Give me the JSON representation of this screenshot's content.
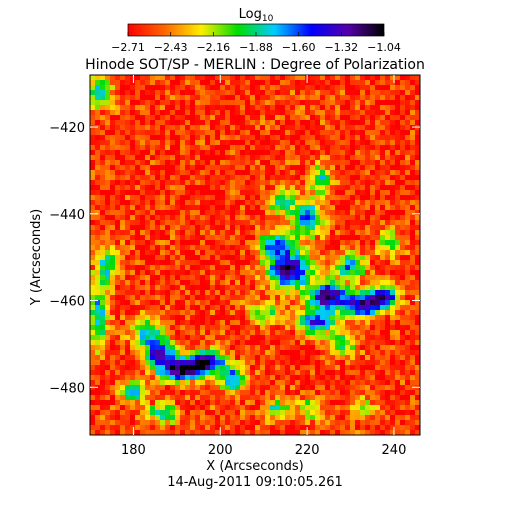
{
  "chart_data": {
    "type": "heatmap",
    "title": "Hinode SOT/SP - MERLIN : Degree of Polarization",
    "xlabel": "X (Arcseconds)",
    "ylabel": "Y (Arcseconds)",
    "xlim": [
      170,
      246
    ],
    "ylim": [
      -491,
      -408
    ],
    "x_ticks": [
      180,
      200,
      220,
      240
    ],
    "y_ticks": [
      -480,
      -460,
      -440,
      -420
    ],
    "x_tick_labels": [
      "180",
      "200",
      "220",
      "240"
    ],
    "y_tick_labels": [
      "−480",
      "−460",
      "−440",
      "−420"
    ],
    "timestamp": "14-Aug-2011 09:10:05.261",
    "colorbar": {
      "label": "Log",
      "label_subscript": "10",
      "range": [
        -2.71,
        -1.04
      ],
      "tick_labels": [
        "−2.71",
        "−2.43",
        "−2.16",
        "−1.88",
        "−1.60",
        "−1.32",
        "−1.04"
      ],
      "colormap": [
        "#ff0000",
        "#ff6600",
        "#ffee00",
        "#00dd00",
        "#00ccff",
        "#0000ff",
        "#5500aa",
        "#000000"
      ]
    },
    "background_level": -2.6,
    "features": [
      {
        "x": 216,
        "y": -453,
        "peak": -1.15,
        "sx": 3.6,
        "sy": 2.8
      },
      {
        "x": 225,
        "y": -459,
        "peak": -1.2,
        "sx": 3.2,
        "sy": 2.2
      },
      {
        "x": 233,
        "y": -461,
        "peak": -1.25,
        "sx": 3.0,
        "sy": 2.0
      },
      {
        "x": 238,
        "y": -459,
        "peak": -1.4,
        "sx": 2.2,
        "sy": 1.8
      },
      {
        "x": 222,
        "y": -465,
        "peak": -1.45,
        "sx": 3.0,
        "sy": 2.0
      },
      {
        "x": 213,
        "y": -447,
        "peak": -1.55,
        "sx": 2.8,
        "sy": 2.0
      },
      {
        "x": 220,
        "y": -441,
        "peak": -1.6,
        "sx": 2.4,
        "sy": 3.0
      },
      {
        "x": 214,
        "y": -437,
        "peak": -1.75,
        "sx": 2.0,
        "sy": 2.0
      },
      {
        "x": 223,
        "y": -432,
        "peak": -1.8,
        "sx": 1.8,
        "sy": 2.2
      },
      {
        "x": 230,
        "y": -452,
        "peak": -1.7,
        "sx": 2.6,
        "sy": 1.8
      },
      {
        "x": 191,
        "y": -476,
        "peak": -1.15,
        "sx": 3.8,
        "sy": 1.8
      },
      {
        "x": 186,
        "y": -472,
        "peak": -1.35,
        "sx": 2.4,
        "sy": 2.2
      },
      {
        "x": 197,
        "y": -474,
        "peak": -1.3,
        "sx": 3.0,
        "sy": 1.8
      },
      {
        "x": 203,
        "y": -478,
        "peak": -1.6,
        "sx": 2.2,
        "sy": 2.0
      },
      {
        "x": 180,
        "y": -481,
        "peak": -1.7,
        "sx": 2.0,
        "sy": 1.6
      },
      {
        "x": 183,
        "y": -467,
        "peak": -1.8,
        "sx": 2.6,
        "sy": 2.2
      },
      {
        "x": 187,
        "y": -486,
        "peak": -1.7,
        "sx": 2.4,
        "sy": 1.6
      },
      {
        "x": 172,
        "y": -463,
        "peak": -1.75,
        "sx": 1.6,
        "sy": 5.0
      },
      {
        "x": 174,
        "y": -452,
        "peak": -1.85,
        "sx": 1.8,
        "sy": 3.0
      },
      {
        "x": 172,
        "y": -412,
        "peak": -1.8,
        "sx": 2.4,
        "sy": 2.4
      },
      {
        "x": 210,
        "y": -463,
        "peak": -1.95,
        "sx": 2.4,
        "sy": 2.0
      },
      {
        "x": 228,
        "y": -470,
        "peak": -1.85,
        "sx": 2.2,
        "sy": 1.8
      },
      {
        "x": 239,
        "y": -447,
        "peak": -1.95,
        "sx": 1.8,
        "sy": 2.0
      },
      {
        "x": 213,
        "y": -485,
        "peak": -1.95,
        "sx": 2.2,
        "sy": 1.8
      },
      {
        "x": 221,
        "y": -485,
        "peak": -2.0,
        "sx": 2.0,
        "sy": 1.8
      },
      {
        "x": 233,
        "y": -485,
        "peak": -2.05,
        "sx": 2.0,
        "sy": 1.8
      }
    ]
  }
}
